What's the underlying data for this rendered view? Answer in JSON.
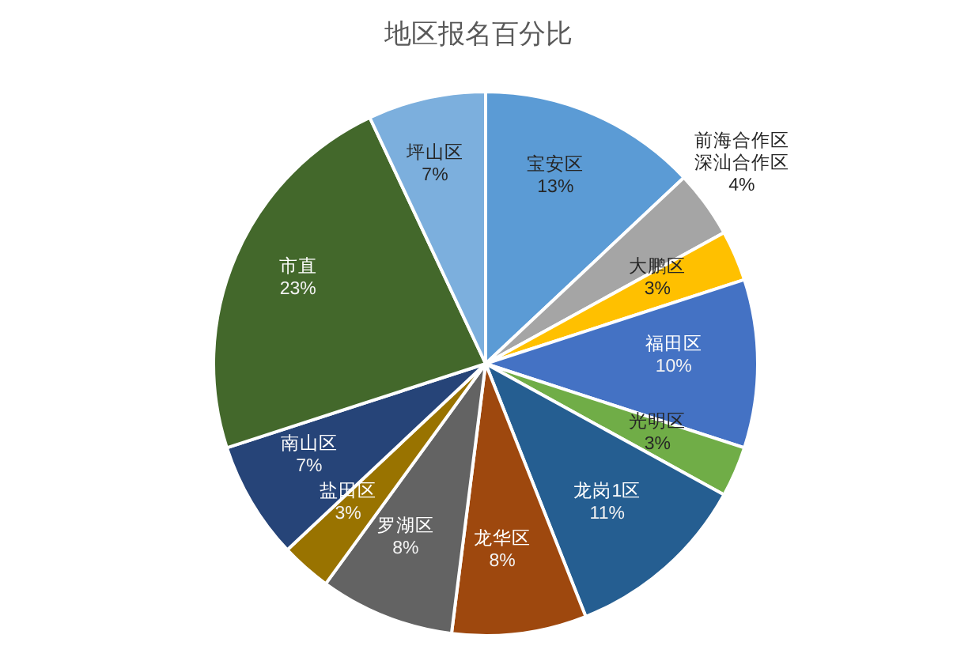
{
  "chart_data": {
    "type": "pie",
    "title": "地区报名百分比",
    "categories": [
      "宝安区",
      "前海合作区深汕合作区",
      "大鹏区",
      "福田区",
      "光明区",
      "龙岗1区",
      "龙华区",
      "罗湖区",
      "盐田区",
      "南山区",
      "市直",
      "坪山区"
    ],
    "values": [
      13,
      4,
      3,
      10,
      3,
      11,
      8,
      8,
      3,
      7,
      23,
      7
    ],
    "value_labels": [
      "13%",
      "4%",
      "3%",
      "10%",
      "3%",
      "11%",
      "8%",
      "8%",
      "3%",
      "7%",
      "23%",
      "7%"
    ],
    "colors": [
      "#5b9bd5",
      "#a5a5a5",
      "#ffc000",
      "#4472c4",
      "#70ad47",
      "#255e91",
      "#9e480e",
      "#636363",
      "#997300",
      "#264478",
      "#43682b",
      "#7cafdd"
    ],
    "legend": false
  }
}
